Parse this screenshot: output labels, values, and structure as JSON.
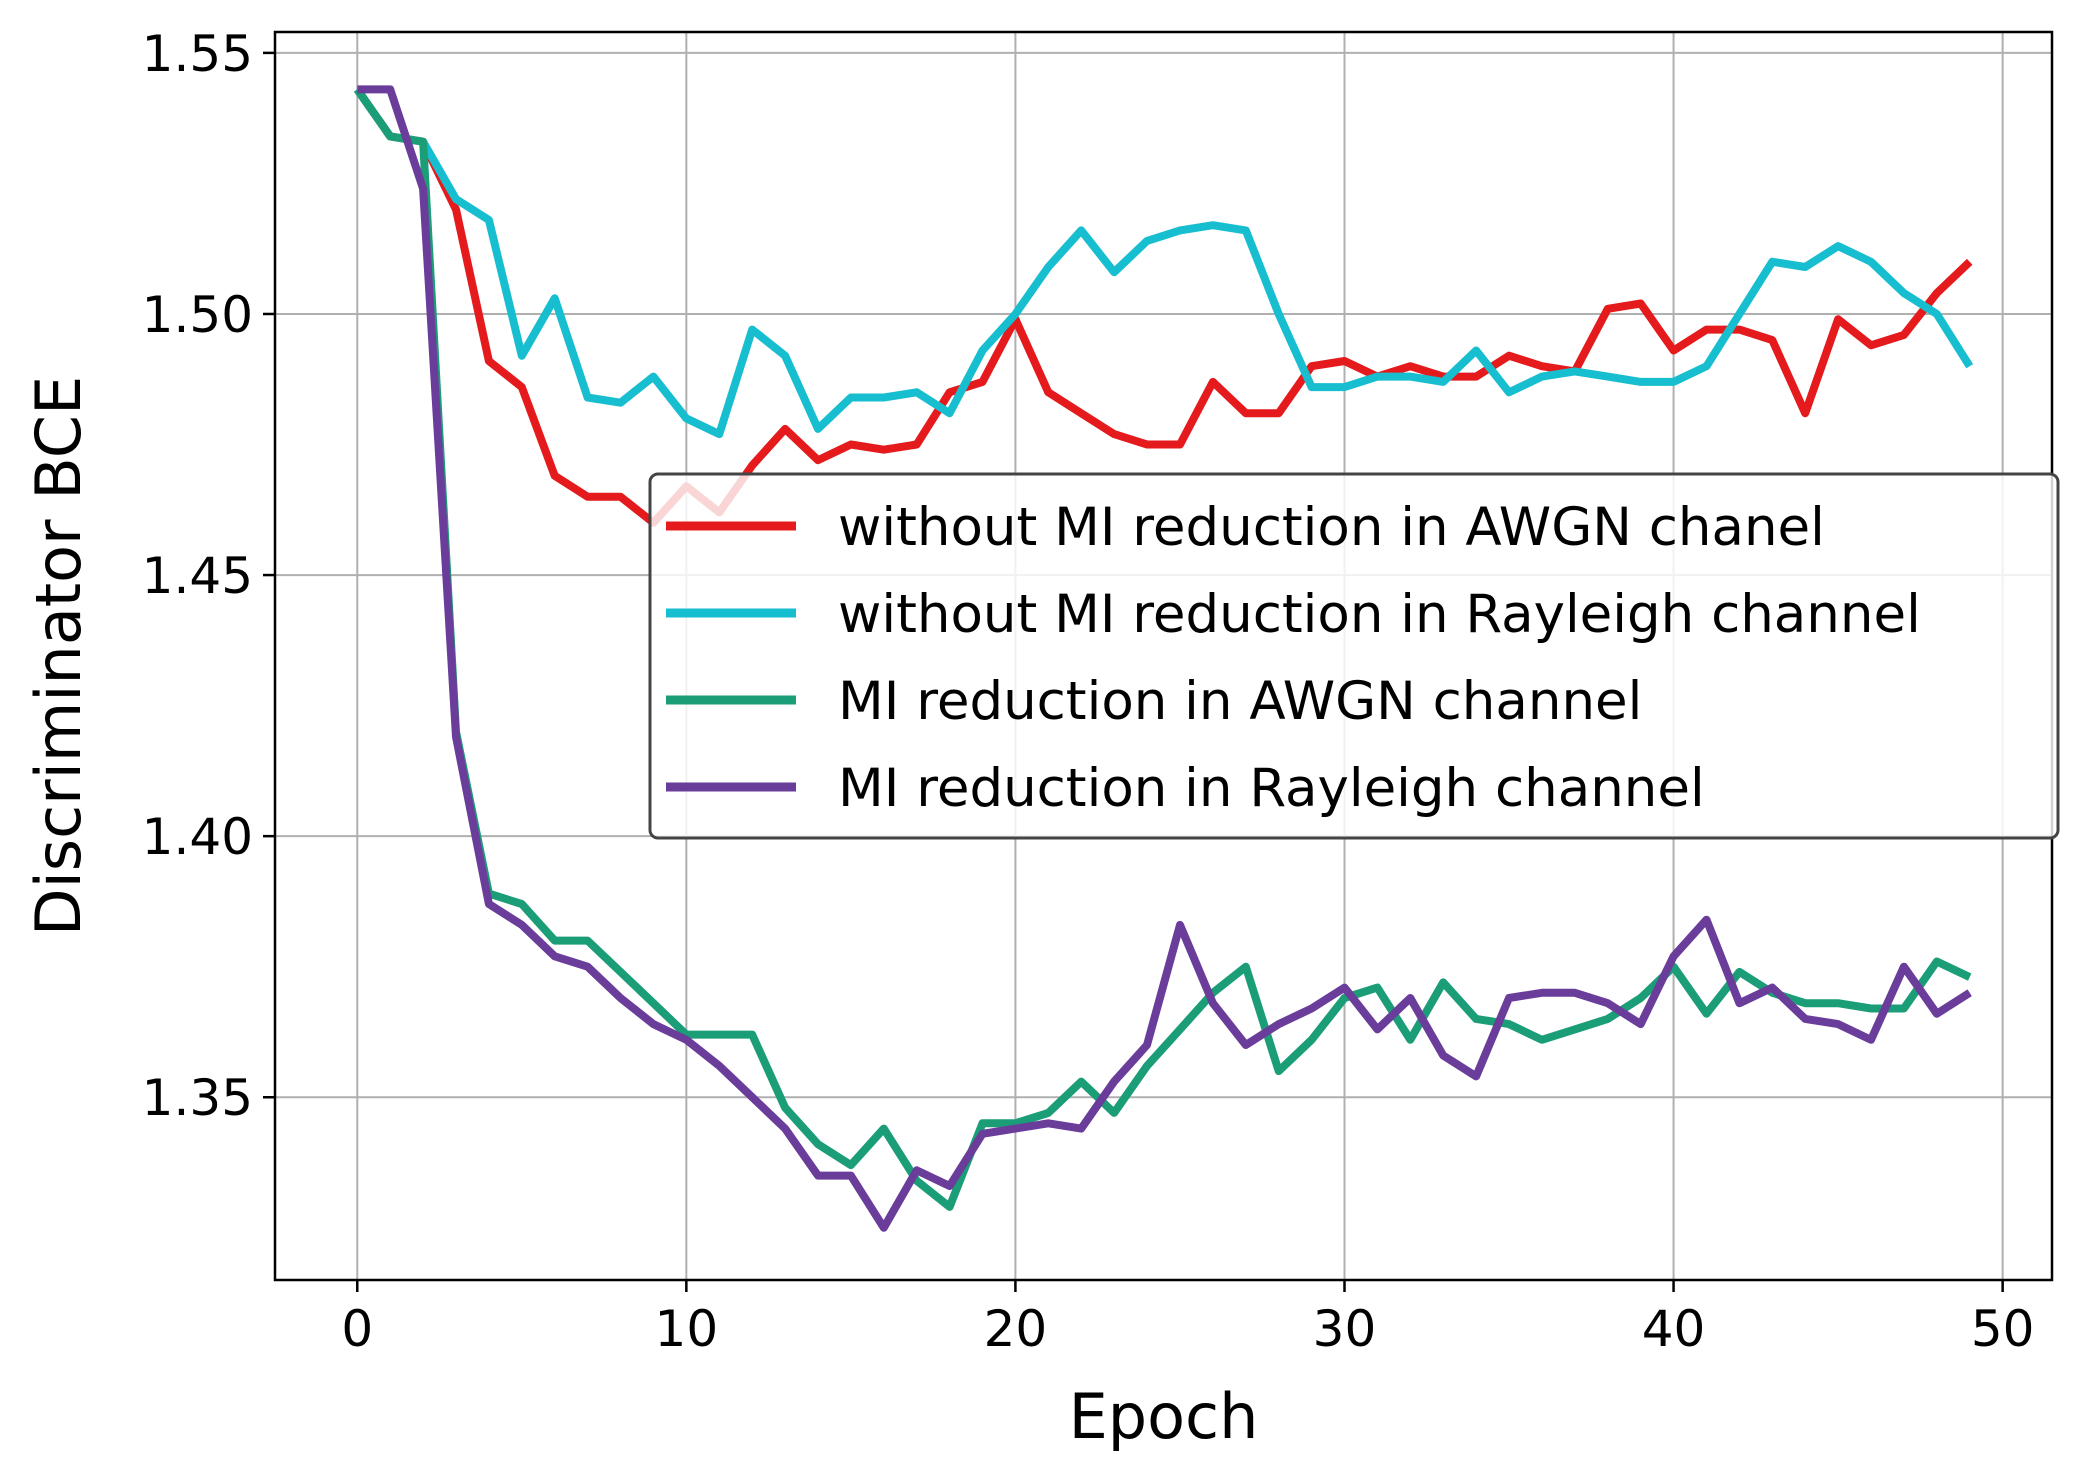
{
  "chart_data": {
    "type": "line",
    "title": "",
    "xlabel": "Epoch",
    "ylabel": "Discriminator BCE",
    "xlim": [
      -2.5,
      51.5
    ],
    "ylim": [
      1.315,
      1.554
    ],
    "xticks": [
      0,
      10,
      20,
      30,
      40,
      50
    ],
    "yticks": [
      1.35,
      1.4,
      1.45,
      1.5,
      1.55
    ],
    "xtick_labels": [
      "0",
      "10",
      "20",
      "30",
      "40",
      "50"
    ],
    "ytick_labels": [
      "1.35",
      "1.40",
      "1.45",
      "1.50",
      "1.55"
    ],
    "grid": true,
    "legend_position": "center-right",
    "x": [
      0,
      1,
      2,
      3,
      4,
      5,
      6,
      7,
      8,
      9,
      10,
      11,
      12,
      13,
      14,
      15,
      16,
      17,
      18,
      19,
      20,
      21,
      22,
      23,
      24,
      25,
      26,
      27,
      28,
      29,
      30,
      31,
      32,
      33,
      34,
      35,
      36,
      37,
      38,
      39,
      40,
      41,
      42,
      43,
      44,
      45,
      46,
      47,
      48,
      49
    ],
    "series": [
      {
        "name": "without MI reduction in AWGN chanel",
        "color": "#e41a1c",
        "values": [
          1.543,
          1.534,
          1.533,
          1.52,
          1.491,
          1.486,
          1.469,
          1.465,
          1.465,
          1.46,
          1.467,
          1.462,
          1.471,
          1.478,
          1.472,
          1.475,
          1.474,
          1.475,
          1.485,
          1.487,
          1.499,
          1.485,
          1.481,
          1.477,
          1.475,
          1.475,
          1.487,
          1.481,
          1.481,
          1.49,
          1.491,
          1.488,
          1.49,
          1.488,
          1.488,
          1.492,
          1.49,
          1.489,
          1.501,
          1.502,
          1.493,
          1.497,
          1.497,
          1.495,
          1.481,
          1.499,
          1.494,
          1.496,
          1.504,
          1.51
        ]
      },
      {
        "name": "without MI reduction in Rayleigh channel",
        "color": "#17becf",
        "values": [
          1.543,
          1.534,
          1.533,
          1.522,
          1.518,
          1.492,
          1.503,
          1.484,
          1.483,
          1.488,
          1.48,
          1.477,
          1.497,
          1.492,
          1.478,
          1.484,
          1.484,
          1.485,
          1.481,
          1.493,
          1.5,
          1.509,
          1.516,
          1.508,
          1.514,
          1.516,
          1.517,
          1.516,
          1.5,
          1.486,
          1.486,
          1.488,
          1.488,
          1.487,
          1.493,
          1.485,
          1.488,
          1.489,
          1.488,
          1.487,
          1.487,
          1.49,
          1.5,
          1.51,
          1.509,
          1.513,
          1.51,
          1.504,
          1.5,
          1.49
        ]
      },
      {
        "name": "MI reduction in AWGN channel",
        "color": "#1b9e77",
        "values": [
          1.543,
          1.534,
          1.533,
          1.42,
          1.389,
          1.387,
          1.38,
          1.38,
          1.374,
          1.368,
          1.362,
          1.362,
          1.362,
          1.348,
          1.341,
          1.337,
          1.344,
          1.334,
          1.329,
          1.345,
          1.345,
          1.347,
          1.353,
          1.347,
          1.356,
          1.363,
          1.37,
          1.375,
          1.355,
          1.361,
          1.369,
          1.371,
          1.361,
          1.372,
          1.365,
          1.364,
          1.361,
          1.363,
          1.365,
          1.369,
          1.375,
          1.366,
          1.374,
          1.37,
          1.368,
          1.368,
          1.367,
          1.367,
          1.376,
          1.373
        ]
      },
      {
        "name": "MI reduction in Rayleigh channel",
        "color": "#6a3d9a",
        "values": [
          1.543,
          1.543,
          1.524,
          1.419,
          1.387,
          1.383,
          1.377,
          1.375,
          1.369,
          1.364,
          1.361,
          1.356,
          1.35,
          1.344,
          1.335,
          1.335,
          1.325,
          1.336,
          1.333,
          1.343,
          1.344,
          1.345,
          1.344,
          1.353,
          1.36,
          1.383,
          1.368,
          1.36,
          1.364,
          1.367,
          1.371,
          1.363,
          1.369,
          1.358,
          1.354,
          1.369,
          1.37,
          1.37,
          1.368,
          1.364,
          1.377,
          1.384,
          1.368,
          1.371,
          1.365,
          1.364,
          1.361,
          1.375,
          1.366,
          1.37
        ]
      }
    ]
  }
}
